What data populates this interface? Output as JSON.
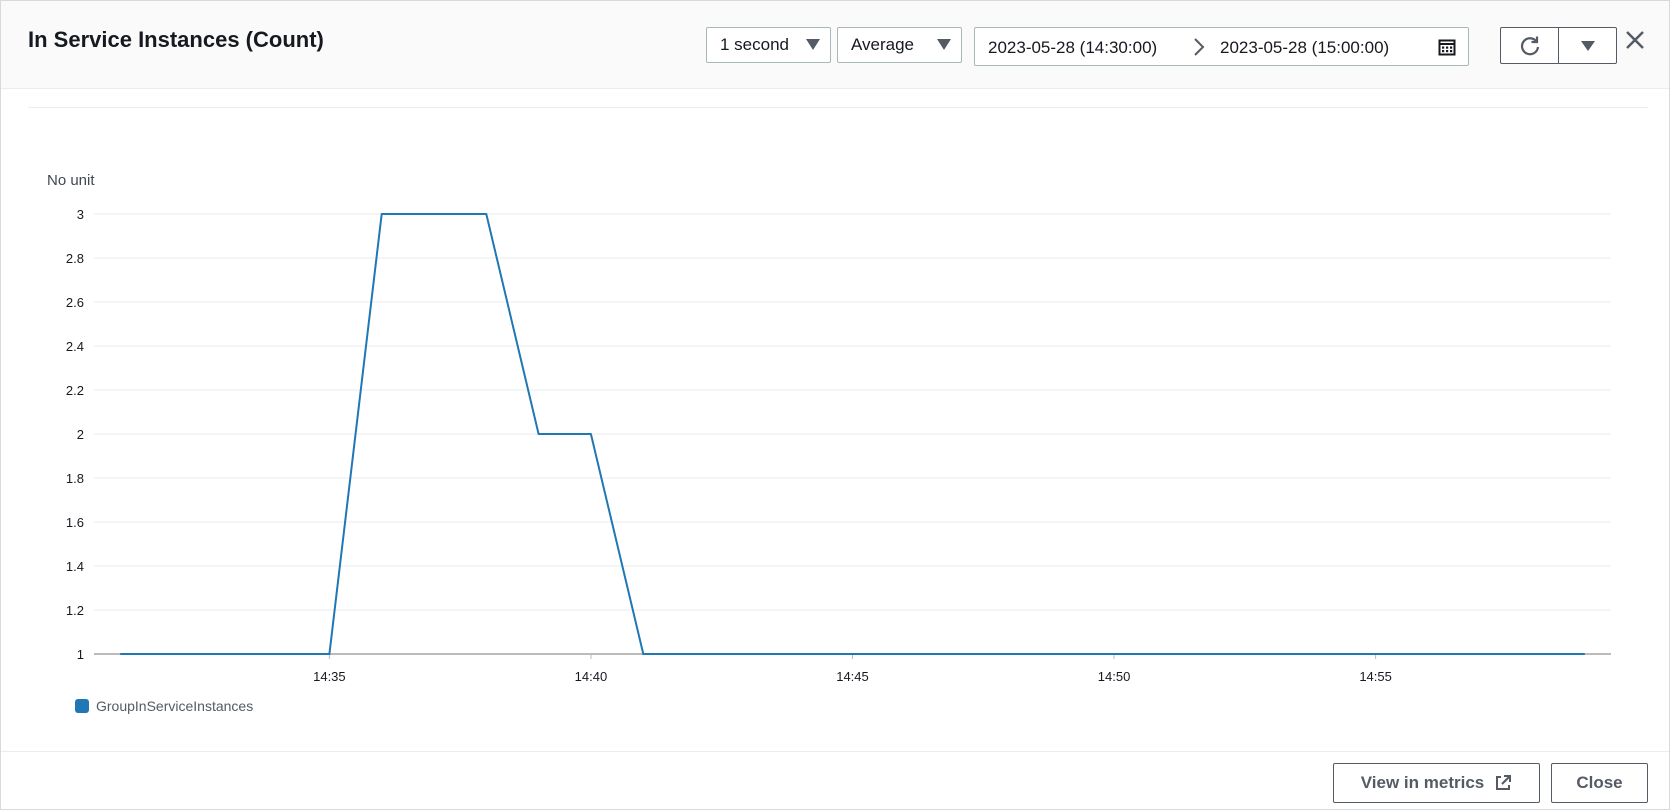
{
  "header": {
    "title": "In Service Instances (Count)",
    "period": "1 second",
    "statistic": "Average",
    "range_start": "2023-05-28 (14:30:00)",
    "range_end": "2023-05-28 (15:00:00)"
  },
  "chart": {
    "unit_label": "No unit",
    "legend_label": "GroupInServiceInstances"
  },
  "footer": {
    "view_metrics_label": "View in metrics",
    "close_label": "Close"
  },
  "colors": {
    "series": "#1f77b4",
    "grid": "#eaeded",
    "axis_text": "#16191f"
  },
  "chart_data": {
    "type": "line",
    "title": "In Service Instances (Count)",
    "ylabel": "No unit",
    "xlabel": "",
    "ylim": [
      1,
      3
    ],
    "yticks": [
      1,
      1.2,
      1.4,
      1.6,
      1.8,
      2,
      2.2,
      2.4,
      2.6,
      2.8,
      3
    ],
    "ytick_labels": [
      "1",
      "1.2",
      "1.4",
      "1.6",
      "1.8",
      "2",
      "2.2",
      "2.4",
      "2.6",
      "2.8",
      "3"
    ],
    "xlim_minutes": [
      30.5,
      59.5
    ],
    "xticks_minutes": [
      35,
      40,
      45,
      50,
      55
    ],
    "xtick_labels": [
      "14:35",
      "14:40",
      "14:45",
      "14:50",
      "14:55"
    ],
    "series": [
      {
        "name": "GroupInServiceInstances",
        "x_minutes": [
          31,
          35,
          36,
          38,
          39,
          40,
          41,
          59
        ],
        "values": [
          1,
          1,
          3,
          3,
          2,
          2,
          1,
          1
        ]
      }
    ]
  }
}
